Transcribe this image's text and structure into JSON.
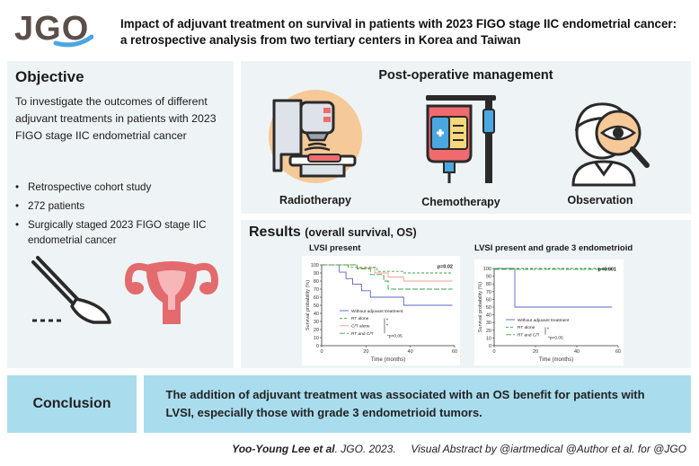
{
  "header": {
    "journal": "JGO",
    "title": "Impact of adjuvant treatment on survival in patients with 2023 FIGO stage IIC endometrial cancer: a retrospective analysis from two tertiary centers in Korea and Taiwan"
  },
  "objective": {
    "heading": "Objective",
    "text": "To investigate the outcomes of different adjuvant treatments in patients with 2023 FIGO stage IIC endometrial cancer",
    "bullets": [
      "Retrospective cohort study",
      "272 patients",
      "Surgically staged 2023 FIGO stage IIC endometrial cancer"
    ]
  },
  "management": {
    "heading": "Post-operative management",
    "items": [
      {
        "label": "Radiotherapy",
        "icon": "radiotherapy-machine-icon"
      },
      {
        "label": "Chemotherapy",
        "icon": "iv-bag-icon"
      },
      {
        "label": "Observation",
        "icon": "observation-eye-icon"
      }
    ]
  },
  "results": {
    "heading": "Results",
    "subheading": "(overall survival, OS)"
  },
  "chart_data": [
    {
      "type": "line",
      "title": "LVSI present",
      "xlabel": "Time (months)",
      "ylabel": "Survival probability (%)",
      "xticks": [
        0,
        20,
        40,
        60
      ],
      "yticks": [
        0,
        10,
        20,
        30,
        40,
        50,
        60,
        70,
        80,
        90,
        100
      ],
      "xlim": [
        0,
        60
      ],
      "ylim": [
        0,
        100
      ],
      "p_main": "p=0.02",
      "p_pairwise": "*p>0.05",
      "pairwise_marks": [
        "*",
        "*"
      ],
      "series": [
        {
          "name": "Without adjuvant treatment",
          "color": "#5b63c4",
          "dash": "",
          "x": [
            0,
            8,
            8,
            11,
            11,
            14,
            14,
            18,
            18,
            22,
            22,
            37,
            37,
            59
          ],
          "y": [
            100,
            100,
            91,
            91,
            83,
            83,
            76,
            76,
            68,
            68,
            60,
            60,
            50,
            50
          ]
        },
        {
          "name": "RT alone",
          "color": "#3aa24a",
          "dash": "3,2",
          "x": [
            0,
            12,
            12,
            25,
            25,
            37,
            37,
            59
          ],
          "y": [
            100,
            100,
            97,
            97,
            92,
            92,
            90,
            90
          ]
        },
        {
          "name": "C/T alone",
          "color": "#f2a08c",
          "dash": "",
          "x": [
            0,
            16,
            16,
            24,
            24,
            30,
            30,
            37,
            37,
            59
          ],
          "y": [
            100,
            100,
            96,
            96,
            90,
            90,
            85,
            85,
            80,
            80
          ]
        },
        {
          "name": "RT and C/T",
          "color": "#3aa24a",
          "dash": "6,2",
          "x": [
            0,
            16,
            16,
            22,
            22,
            28,
            28,
            30,
            30,
            59
          ],
          "y": [
            100,
            100,
            95,
            95,
            88,
            88,
            80,
            80,
            70,
            70
          ]
        }
      ]
    },
    {
      "type": "line",
      "title": "LVSI present and grade 3 endometrioid",
      "xlabel": "Time (months)",
      "ylabel": "Survival probability (%)",
      "xticks": [
        0,
        20,
        40,
        60
      ],
      "yticks": [
        0,
        10,
        20,
        30,
        40,
        50,
        60,
        70,
        80,
        90,
        100
      ],
      "xlim": [
        0,
        60
      ],
      "ylim": [
        0,
        100
      ],
      "p_main": "p<0.001",
      "p_pairwise": "*p>0.05",
      "pairwise_marks": [
        "*"
      ],
      "series": [
        {
          "name": "Without adjuvant treatment",
          "color": "#5b63c4",
          "dash": "",
          "x": [
            0,
            10,
            10,
            57
          ],
          "y": [
            100,
            100,
            50,
            50
          ]
        },
        {
          "name": "RT alone",
          "color": "#3aa24a",
          "dash": "3,2",
          "x": [
            0,
            57
          ],
          "y": [
            100,
            100
          ]
        },
        {
          "name": "RT and C/T",
          "color": "#3aa24a",
          "dash": "6,2",
          "x": [
            0,
            57
          ],
          "y": [
            99,
            99
          ]
        }
      ]
    }
  ],
  "conclusion": {
    "label": "Conclusion",
    "text": "The addition of adjuvant treatment was associated with an OS benefit for patients with LVSI, especially those with grade 3 endometrioid tumors."
  },
  "footer": {
    "author": "Yoo-Young Lee et al",
    "citation": ". JGO. 2023.",
    "credit": "Visual Abstract by @iartmedical @Author et al. for @JGO"
  },
  "colors": {
    "accent": "#a9dced",
    "panel": "#eef4f6",
    "logo": "#5a4f4a",
    "logo_swoosh": "#4aa7e0"
  }
}
